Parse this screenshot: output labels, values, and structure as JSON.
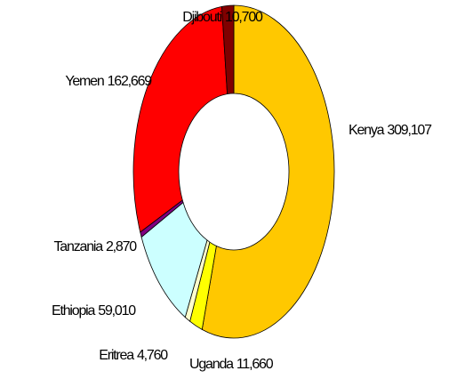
{
  "chart_data": {
    "type": "donut",
    "categories": [
      "Kenya",
      "Uganda",
      "Eritrea",
      "Ethiopia",
      "Tanzania",
      "Yemen",
      "Djibouti"
    ],
    "values": [
      309107,
      11660,
      4760,
      59010,
      2870,
      162669,
      10700
    ],
    "value_labels": [
      "309,107",
      "11,660",
      "4,760",
      "59,010",
      "2,870",
      "162,669",
      "10,700"
    ],
    "colors": [
      "#ffc800",
      "#ffff00",
      "#ffffcc",
      "#ccffff",
      "#800080",
      "#ff0000",
      "#800000"
    ]
  }
}
